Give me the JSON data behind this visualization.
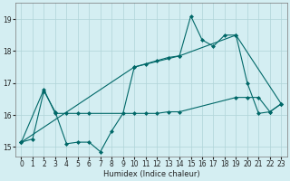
{
  "bg_color": "#d4eef2",
  "grid_color": "#b0d4d8",
  "line_color": "#006868",
  "xlabel": "Humidex (Indice chaleur)",
  "xlim": [
    -0.5,
    23.5
  ],
  "ylim": [
    14.7,
    19.5
  ],
  "yticks": [
    15,
    16,
    17,
    18,
    19
  ],
  "xticks": [
    0,
    1,
    2,
    3,
    4,
    5,
    6,
    7,
    8,
    9,
    10,
    11,
    12,
    13,
    14,
    15,
    16,
    17,
    18,
    19,
    20,
    21,
    22,
    23
  ],
  "line1_x": [
    0,
    1,
    2,
    3,
    4,
    5,
    6,
    7,
    8,
    9,
    10,
    11,
    12,
    13,
    14,
    15,
    16,
    17,
    18,
    19,
    20,
    21,
    22,
    23
  ],
  "line1_y": [
    15.15,
    15.25,
    16.75,
    16.1,
    15.1,
    15.15,
    15.15,
    14.85,
    15.5,
    16.05,
    17.5,
    17.6,
    17.7,
    17.8,
    17.85,
    19.1,
    18.35,
    18.15,
    18.5,
    18.5,
    17.0,
    16.05,
    16.1,
    16.35
  ],
  "line2_x": [
    0,
    2,
    3,
    4,
    5,
    6,
    10,
    11,
    12,
    13,
    14,
    19,
    20,
    21,
    22,
    23
  ],
  "line2_y": [
    15.15,
    16.8,
    16.05,
    16.05,
    16.05,
    16.05,
    16.05,
    16.05,
    16.05,
    16.1,
    16.1,
    16.55,
    16.55,
    16.55,
    16.1,
    16.35
  ],
  "line3_x": [
    0,
    10,
    14,
    19,
    23
  ],
  "line3_y": [
    15.15,
    17.5,
    17.85,
    18.5,
    16.35
  ]
}
